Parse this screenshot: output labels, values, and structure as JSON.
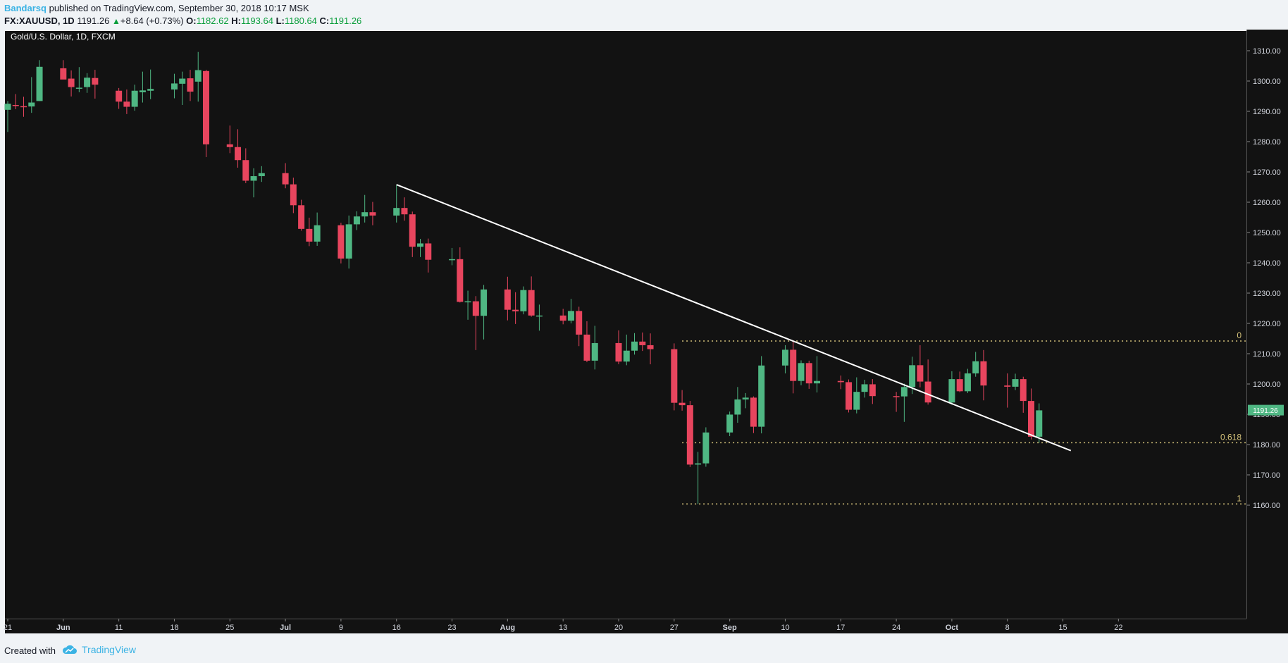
{
  "header": {
    "author": "Bandarsq",
    "published_text": "published on TradingView.com, September 30, 2018 10:17 MSK",
    "symbol": "FX:XAUUSD, 1D",
    "last": "1191.26",
    "change": "+8.64 (+0.73%)",
    "o_label": "O:",
    "o_value": "1182.62",
    "h_label": "H:",
    "h_value": "1193.64",
    "l_label": "L:",
    "l_value": "1180.64",
    "c_label": "C:",
    "c_value": "1191.26"
  },
  "chart": {
    "title": "Gold/U.S. Dollar, 1D, FXCM",
    "price_tag": "1191.26"
  },
  "footer": {
    "created_with": "Created with",
    "brand": "TradingView"
  },
  "colors": {
    "background": "#121212",
    "up": "#4fb783",
    "down": "#e8455e",
    "trendline": "#ffffff",
    "fib": "#d4c27a"
  },
  "chart_data": {
    "type": "candlestick",
    "title": "Gold/U.S. Dollar, 1D, FXCM",
    "ylim": [
      1155,
      1315
    ],
    "y_ticks": [
      "1160.00",
      "1170.00",
      "1180.00",
      "1190.00",
      "1200.00",
      "1210.00",
      "1220.00",
      "1230.00",
      "1240.00",
      "1250.00",
      "1260.00",
      "1270.00",
      "1280.00",
      "1290.00",
      "1300.00",
      "1310.00"
    ],
    "x_tick_labels": [
      "21",
      "Jun",
      "11",
      "18",
      "25",
      "Jul",
      "9",
      "16",
      "23",
      "Aug",
      "13",
      "20",
      "27",
      "Sep",
      "10",
      "17",
      "24",
      "Oct",
      "8",
      "15",
      "22"
    ],
    "bold_x_labels": [
      "Jun",
      "Jul",
      "Aug",
      "Sep",
      "Oct"
    ],
    "first_date": "2018-05-21",
    "last_axis_date": "2018-10-22",
    "candles": [
      [
        "2018-05-21",
        1290.5,
        1293.4,
        1283.2,
        1292.5
      ],
      [
        "2018-05-22",
        1292.1,
        1295.7,
        1290.7,
        1291.8
      ],
      [
        "2018-05-23",
        1291.7,
        1294.8,
        1288.2,
        1291.6
      ],
      [
        "2018-05-24",
        1291.6,
        1301.3,
        1289.5,
        1292.9
      ],
      [
        "2018-05-25",
        1293.4,
        1306.9,
        1293.4,
        1304.7
      ],
      [
        "2018-05-28",
        1304.2,
        1306.9,
        1301.9,
        1300.5
      ],
      [
        "2018-05-29",
        1300.8,
        1303.5,
        1294.9,
        1298.0
      ],
      [
        "2018-05-30",
        1297.7,
        1304.6,
        1296.3,
        1297.8
      ],
      [
        "2018-05-31",
        1298.0,
        1302.6,
        1296.1,
        1301.1
      ],
      [
        "2018-06-01",
        1301.0,
        1303.7,
        1294.2,
        1298.8
      ],
      [
        "2018-06-04",
        1296.8,
        1297.7,
        1290.8,
        1293.2
      ],
      [
        "2018-06-05",
        1293.2,
        1297.2,
        1289.1,
        1291.5
      ],
      [
        "2018-06-06",
        1291.5,
        1298.8,
        1290.2,
        1296.8
      ],
      [
        "2018-06-07",
        1296.3,
        1303.1,
        1292.9,
        1296.9
      ],
      [
        "2018-06-08",
        1296.8,
        1303.8,
        1294.0,
        1297.4
      ],
      [
        "2018-06-11",
        1297.2,
        1302.4,
        1294.3,
        1299.2
      ],
      [
        "2018-06-12",
        1299.1,
        1303.1,
        1292.1,
        1300.8
      ],
      [
        "2018-06-13",
        1300.9,
        1303.7,
        1293.4,
        1296.5
      ],
      [
        "2018-06-14",
        1299.8,
        1309.6,
        1293.2,
        1303.6
      ],
      [
        "2018-06-15",
        1303.3,
        1303.7,
        1274.9,
        1279.1
      ],
      [
        "2018-06-18",
        1279.1,
        1285.3,
        1276.2,
        1278.2
      ],
      [
        "2018-06-19",
        1278.2,
        1284.1,
        1271.4,
        1273.9
      ],
      [
        "2018-06-20",
        1273.9,
        1277.8,
        1266.3,
        1267.1
      ],
      [
        "2018-06-21",
        1267.1,
        1271.2,
        1261.6,
        1268.6
      ],
      [
        "2018-06-22",
        1268.6,
        1271.9,
        1266.7,
        1269.6
      ],
      [
        "2018-06-25",
        1269.6,
        1272.9,
        1264.6,
        1265.9
      ],
      [
        "2018-06-26",
        1265.9,
        1268.1,
        1256.4,
        1259.0
      ],
      [
        "2018-06-27",
        1259.0,
        1260.8,
        1250.6,
        1251.2
      ],
      [
        "2018-06-28",
        1251.2,
        1254.9,
        1245.5,
        1247.0
      ],
      [
        "2018-06-29",
        1247.0,
        1256.6,
        1245.6,
        1252.4
      ],
      [
        "2018-07-02",
        1252.4,
        1253.2,
        1239.8,
        1241.4
      ],
      [
        "2018-07-03",
        1241.4,
        1255.6,
        1238.1,
        1252.7
      ],
      [
        "2018-07-04",
        1252.7,
        1257.0,
        1250.8,
        1255.3
      ],
      [
        "2018-07-05",
        1255.3,
        1262.4,
        1253.3,
        1256.7
      ],
      [
        "2018-07-06",
        1256.7,
        1260.1,
        1252.4,
        1255.6
      ],
      [
        "2018-07-09",
        1255.6,
        1265.8,
        1253.3,
        1258.1
      ],
      [
        "2018-07-10",
        1258.1,
        1261.6,
        1253.9,
        1256.0
      ],
      [
        "2018-07-11",
        1256.0,
        1256.9,
        1241.9,
        1245.3
      ],
      [
        "2018-07-12",
        1245.3,
        1247.9,
        1241.9,
        1246.4
      ],
      [
        "2018-07-13",
        1246.4,
        1248.0,
        1236.8,
        1241.0
      ],
      [
        "2018-07-16",
        1241.0,
        1244.9,
        1239.2,
        1241.2
      ],
      [
        "2018-07-17",
        1241.2,
        1245.1,
        1226.9,
        1227.1
      ],
      [
        "2018-07-18",
        1227.1,
        1230.8,
        1221.2,
        1227.3
      ],
      [
        "2018-07-19",
        1227.3,
        1229.0,
        1211.2,
        1222.5
      ],
      [
        "2018-07-20",
        1222.5,
        1232.7,
        1214.7,
        1231.2
      ],
      [
        "2018-07-23",
        1231.2,
        1235.4,
        1221.0,
        1224.5
      ],
      [
        "2018-07-24",
        1224.5,
        1230.3,
        1219.8,
        1224.0
      ],
      [
        "2018-07-25",
        1224.0,
        1232.2,
        1223.0,
        1231.0
      ],
      [
        "2018-07-26",
        1231.0,
        1235.5,
        1222.2,
        1222.6
      ],
      [
        "2018-07-27",
        1222.6,
        1226.2,
        1217.6,
        1222.6
      ],
      [
        "2018-07-30",
        1222.6,
        1224.8,
        1219.7,
        1220.9
      ],
      [
        "2018-07-31",
        1220.9,
        1228.1,
        1220.0,
        1224.1
      ],
      [
        "2018-08-01",
        1224.1,
        1225.5,
        1212.5,
        1216.3
      ],
      [
        "2018-08-02",
        1216.3,
        1220.7,
        1207.2,
        1207.7
      ],
      [
        "2018-08-03",
        1207.7,
        1219.2,
        1204.8,
        1213.5
      ],
      [
        "2018-08-06",
        1213.5,
        1217.7,
        1206.5,
        1207.4
      ],
      [
        "2018-08-07",
        1207.4,
        1216.3,
        1206.2,
        1211.0
      ],
      [
        "2018-08-08",
        1211.0,
        1216.8,
        1209.7,
        1214.0
      ],
      [
        "2018-08-09",
        1214.0,
        1217.0,
        1210.9,
        1212.8
      ],
      [
        "2018-08-10",
        1212.8,
        1216.7,
        1206.5,
        1211.5
      ],
      [
        "2018-08-13",
        1211.5,
        1213.4,
        1191.3,
        1193.8
      ],
      [
        "2018-08-14",
        1193.8,
        1198.0,
        1191.2,
        1193.0
      ],
      [
        "2018-08-15",
        1193.0,
        1194.4,
        1172.6,
        1173.4
      ],
      [
        "2018-08-16",
        1173.4,
        1177.6,
        1160.4,
        1173.8
      ],
      [
        "2018-08-17",
        1173.8,
        1185.7,
        1172.7,
        1184.0
      ],
      [
        "2018-08-20",
        1184.0,
        1190.9,
        1182.8,
        1189.9
      ],
      [
        "2018-08-21",
        1189.9,
        1199.0,
        1187.2,
        1194.9
      ],
      [
        "2018-08-22",
        1194.9,
        1197.0,
        1192.0,
        1195.5
      ],
      [
        "2018-08-23",
        1195.5,
        1195.9,
        1183.8,
        1185.9
      ],
      [
        "2018-08-24",
        1185.9,
        1209.2,
        1183.7,
        1206.1
      ],
      [
        "2018-08-27",
        1206.1,
        1212.8,
        1203.5,
        1211.3
      ],
      [
        "2018-08-28",
        1211.3,
        1214.2,
        1196.9,
        1201.0
      ],
      [
        "2018-08-29",
        1201.0,
        1207.8,
        1199.6,
        1206.9
      ],
      [
        "2018-08-30",
        1206.9,
        1207.7,
        1198.4,
        1200.2
      ],
      [
        "2018-08-31",
        1200.2,
        1209.2,
        1197.2,
        1201.0
      ],
      [
        "2018-09-03",
        1201.0,
        1202.8,
        1198.3,
        1200.6
      ],
      [
        "2018-09-04",
        1200.6,
        1201.5,
        1190.6,
        1191.5
      ],
      [
        "2018-09-05",
        1191.5,
        1202.2,
        1190.3,
        1197.4
      ],
      [
        "2018-09-06",
        1197.4,
        1201.4,
        1195.5,
        1199.9
      ],
      [
        "2018-09-07",
        1199.9,
        1201.6,
        1193.4,
        1196.0
      ],
      [
        "2018-09-10",
        1196.0,
        1197.4,
        1190.8,
        1195.9
      ],
      [
        "2018-09-11",
        1195.9,
        1200.1,
        1187.5,
        1199.0
      ],
      [
        "2018-09-12",
        1199.0,
        1209.0,
        1196.7,
        1206.2
      ],
      [
        "2018-09-13",
        1206.2,
        1212.8,
        1198.9,
        1200.8
      ],
      [
        "2018-09-14",
        1200.8,
        1208.1,
        1193.2,
        1193.9
      ],
      [
        "2018-09-17",
        1193.9,
        1204.2,
        1193.2,
        1201.6
      ],
      [
        "2018-09-18",
        1201.6,
        1204.1,
        1197.3,
        1197.6
      ],
      [
        "2018-09-19",
        1197.6,
        1205.0,
        1197.0,
        1203.5
      ],
      [
        "2018-09-20",
        1203.5,
        1210.6,
        1202.4,
        1207.5
      ],
      [
        "2018-09-21",
        1207.5,
        1211.2,
        1194.6,
        1199.5
      ],
      [
        "2018-09-24",
        1199.5,
        1203.5,
        1192.2,
        1199.1
      ],
      [
        "2018-09-25",
        1199.1,
        1203.4,
        1198.0,
        1201.6
      ],
      [
        "2018-09-26",
        1201.6,
        1202.4,
        1190.5,
        1194.4
      ],
      [
        "2018-09-27",
        1194.4,
        1198.5,
        1181.7,
        1182.6
      ],
      [
        "2018-09-28",
        1182.6,
        1193.6,
        1180.6,
        1191.3
      ]
    ],
    "trendline": {
      "start": [
        "2018-07-09",
        1265.8
      ],
      "end": [
        "2018-10-02",
        1178.0
      ]
    },
    "fib_levels": [
      {
        "label": "0",
        "value": 1214.2
      },
      {
        "label": "0.618",
        "value": 1180.6
      },
      {
        "label": "1",
        "value": 1160.4
      }
    ],
    "fib_start_date": "2018-08-14",
    "last_price": 1191.26
  }
}
